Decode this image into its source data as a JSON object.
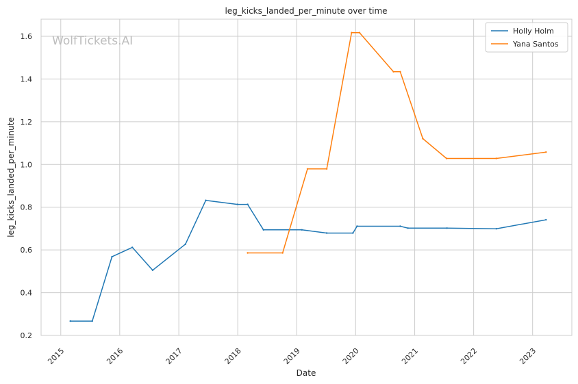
{
  "chart_data": {
    "type": "line",
    "title": "leg_kicks_landed_per_minute over time",
    "xlabel": "Date",
    "ylabel": "leg_kicks_landed_per_minute",
    "watermark": "WolfTickets.AI",
    "xlim": [
      "2014-09-01",
      "2023-09-01"
    ],
    "ylim": [
      0.2,
      1.68
    ],
    "x_ticks": [
      "2015",
      "2016",
      "2017",
      "2018",
      "2019",
      "2020",
      "2021",
      "2022",
      "2023"
    ],
    "y_ticks": [
      "0.2",
      "0.4",
      "0.6",
      "0.8",
      "1.0",
      "1.2",
      "1.4",
      "1.6"
    ],
    "grid": true,
    "legend_position": "top-right",
    "series": [
      {
        "name": "Holly Holm",
        "color": "#1f77b4",
        "points": [
          {
            "x": "2015-03-01",
            "y": 0.267
          },
          {
            "x": "2015-07-15",
            "y": 0.267
          },
          {
            "x": "2015-11-14",
            "y": 0.568
          },
          {
            "x": "2016-03-19",
            "y": 0.612
          },
          {
            "x": "2016-07-23",
            "y": 0.505
          },
          {
            "x": "2017-02-11",
            "y": 0.627
          },
          {
            "x": "2017-06-17",
            "y": 0.832
          },
          {
            "x": "2017-12-30",
            "y": 0.813
          },
          {
            "x": "2018-03-03",
            "y": 0.813
          },
          {
            "x": "2018-06-09",
            "y": 0.694
          },
          {
            "x": "2019-02-02",
            "y": 0.694
          },
          {
            "x": "2019-07-06",
            "y": 0.679
          },
          {
            "x": "2019-12-15",
            "y": 0.679
          },
          {
            "x": "2020-01-10",
            "y": 0.711
          },
          {
            "x": "2020-10-03",
            "y": 0.711
          },
          {
            "x": "2020-11-20",
            "y": 0.702
          },
          {
            "x": "2021-07-20",
            "y": 0.702
          },
          {
            "x": "2022-05-21",
            "y": 0.699
          },
          {
            "x": "2023-03-25",
            "y": 0.741
          }
        ]
      },
      {
        "name": "Yana Santos",
        "color": "#ff7f0e",
        "points": [
          {
            "x": "2018-03-03",
            "y": 0.586
          },
          {
            "x": "2018-10-06",
            "y": 0.586
          },
          {
            "x": "2019-03-09",
            "y": 0.979
          },
          {
            "x": "2019-07-06",
            "y": 0.979
          },
          {
            "x": "2019-12-07",
            "y": 1.617
          },
          {
            "x": "2020-01-25",
            "y": 1.617
          },
          {
            "x": "2020-08-22",
            "y": 1.434
          },
          {
            "x": "2020-10-03",
            "y": 1.434
          },
          {
            "x": "2021-02-20",
            "y": 1.121
          },
          {
            "x": "2021-07-17",
            "y": 1.028
          },
          {
            "x": "2022-05-21",
            "y": 1.028
          },
          {
            "x": "2023-03-25",
            "y": 1.058
          }
        ]
      }
    ]
  }
}
